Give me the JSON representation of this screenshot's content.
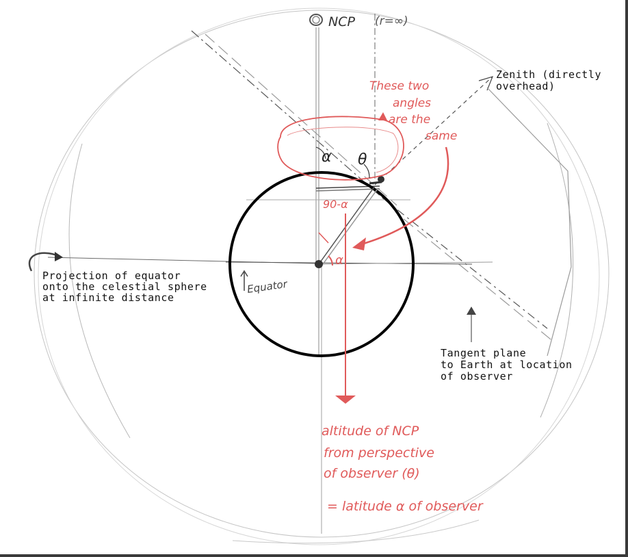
{
  "labels": {
    "ncp": "NCP",
    "infinite_radius": "(r=∞)",
    "zenith_line1": "Zenith (directly",
    "zenith_line2": "overhead)",
    "same_angles_line1": "These two",
    "same_angles_line2": "angles",
    "same_angles_line3": "are the",
    "same_angles_line4": "same",
    "alpha_top": "α",
    "theta": "θ",
    "ninety_minus_alpha": "90-α",
    "alpha_center": "α",
    "equator": "Equator",
    "projection_line1": "Projection of equator",
    "projection_line2": "onto the celestial sphere",
    "projection_line3": "at infinite distance",
    "tangent_line1": "Tangent plane",
    "tangent_line2": "to Earth at location",
    "tangent_line3": "of observer",
    "conclusion_line1": "altitude of NCP",
    "conclusion_line2": "from perspective",
    "conclusion_line3": "of observer (θ)",
    "conclusion_line4": "= latitude α of observer"
  },
  "colors": {
    "ink": "#111111",
    "pencil": "#8a8a8a",
    "red_pen": "#e05a5a"
  }
}
